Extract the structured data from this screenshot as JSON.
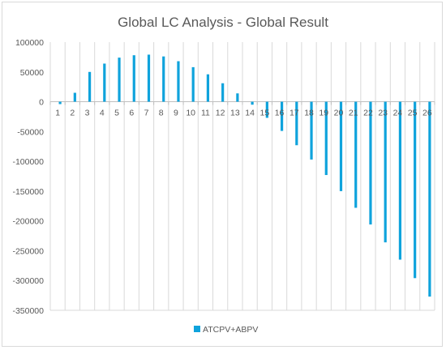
{
  "chart_data": {
    "type": "bar",
    "title": "Global LC Analysis - Global Result",
    "xlabel": "",
    "ylabel": "",
    "categories": [
      "1",
      "2",
      "3",
      "4",
      "5",
      "6",
      "7",
      "8",
      "9",
      "10",
      "11",
      "12",
      "13",
      "14",
      "15",
      "16",
      "17",
      "18",
      "19",
      "20",
      "21",
      "22",
      "23",
      "24",
      "25",
      "26"
    ],
    "series": [
      {
        "name": "ATCPV+ABPV",
        "color": "#0fa3dc",
        "values": [
          -4000,
          15000,
          50000,
          64000,
          74000,
          78000,
          79000,
          76000,
          68000,
          58000,
          46000,
          31000,
          14000,
          -5000,
          -27000,
          -49000,
          -73000,
          -97000,
          -123000,
          -150000,
          -178000,
          -206000,
          -236000,
          -265000,
          -296000,
          -327000
        ]
      }
    ],
    "ylim": [
      -350000,
      100000
    ],
    "yticks": [
      100000,
      50000,
      0,
      -50000,
      -100000,
      -150000,
      -200000,
      -250000,
      -300000,
      -350000
    ],
    "grid": {
      "vertical": true,
      "horizontal": false
    },
    "legend": "bottom"
  }
}
